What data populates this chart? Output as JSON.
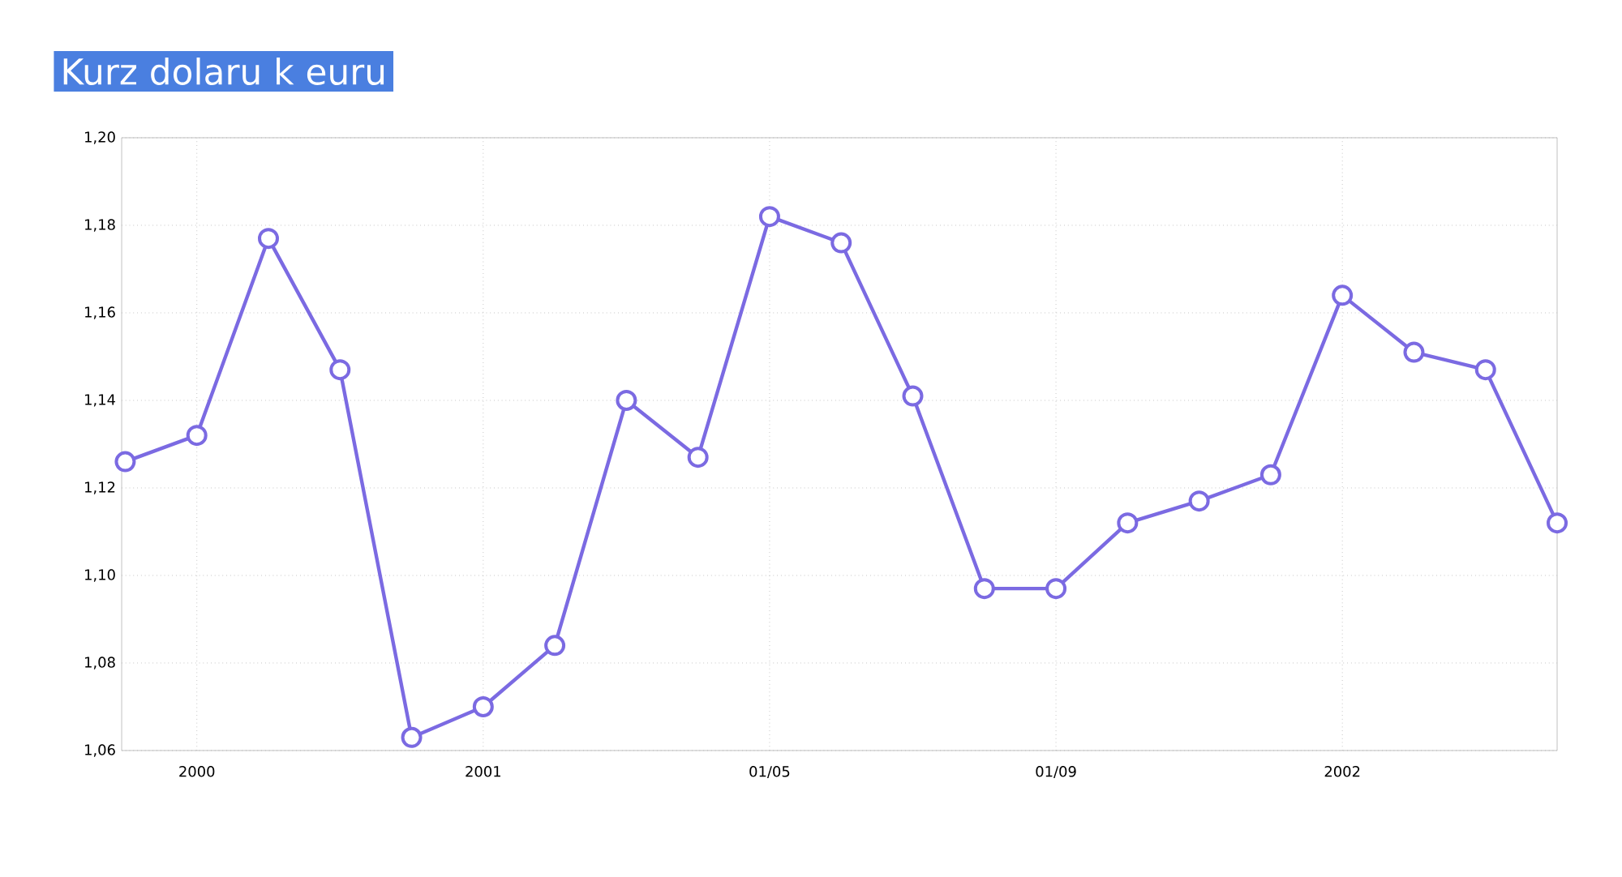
{
  "chart_data": {
    "type": "line",
    "title": "Kurz dolaru k euru",
    "categories": [
      null,
      "2000",
      null,
      null,
      null,
      "2001",
      null,
      null,
      null,
      "01/05",
      null,
      null,
      null,
      "01/09",
      null,
      null,
      null,
      "2002",
      null,
      null,
      null
    ],
    "values": [
      1.126,
      1.132,
      1.177,
      1.147,
      1.063,
      1.07,
      1.084,
      1.14,
      1.127,
      1.182,
      1.176,
      1.141,
      1.097,
      1.097,
      1.112,
      1.117,
      1.123,
      1.164,
      1.151,
      1.147,
      1.112
    ],
    "color": "#7b6ae2",
    "ylim": [
      1.06,
      1.2
    ],
    "yticks": [
      {
        "value": 1.06,
        "label": "1,06"
      },
      {
        "value": 1.08,
        "label": "1,08"
      },
      {
        "value": 1.1,
        "label": "1,10"
      },
      {
        "value": 1.12,
        "label": "1,12"
      },
      {
        "value": 1.14,
        "label": "1,14"
      },
      {
        "value": 1.16,
        "label": "1,16"
      },
      {
        "value": 1.18,
        "label": "1,18"
      },
      {
        "value": 1.2,
        "label": "1,20"
      }
    ],
    "grid": true,
    "marker": "circle",
    "line_style": "solid"
  }
}
